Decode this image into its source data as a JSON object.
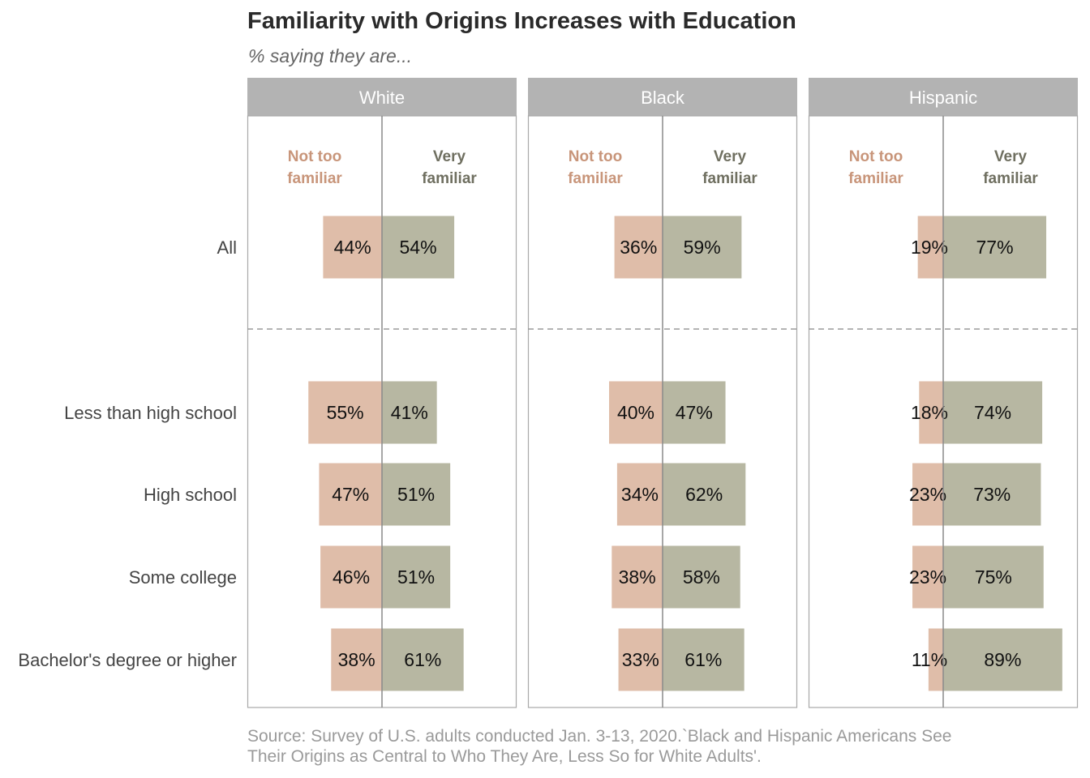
{
  "title": "Familiarity with Origins Increases with Education",
  "subtitle": "% saying they are...",
  "source_lines": [
    "Source: Survey of U.S. adults conducted Jan. 3-13, 2020.`Black and Hispanic Americans See",
    "Their Origins as Central to Who They Are, Less So for White Adults'."
  ],
  "colors": {
    "not_familiar": "#dfbda9",
    "very_familiar": "#b7b7a2",
    "not_familiar_label": "#c8957a",
    "very_familiar_label": "#6f6f60",
    "strip": "#b3b3b3"
  },
  "chart_data": {
    "type": "bar",
    "orientation": "horizontal-diverging",
    "categories": [
      "All",
      "Less than high school",
      "High school",
      "Some college",
      "Bachelor's degree or higher"
    ],
    "series_labels": {
      "not_familiar": [
        "Not too",
        "familiar"
      ],
      "very_familiar": [
        "Very",
        "familiar"
      ]
    },
    "panels": [
      {
        "name": "White",
        "not_familiar": [
          44,
          55,
          47,
          46,
          38
        ],
        "very_familiar": [
          54,
          41,
          51,
          51,
          61
        ],
        "labels_not": [
          "44%",
          "55%",
          "47%",
          "46%",
          "38%"
        ],
        "labels_very": [
          "54%",
          "41%",
          "51%",
          "51%",
          "61%"
        ]
      },
      {
        "name": "Black",
        "not_familiar": [
          36,
          40,
          34,
          38,
          33
        ],
        "very_familiar": [
          59,
          47,
          62,
          58,
          61
        ],
        "labels_not": [
          "36%",
          "40%",
          "34%",
          "38%",
          "33%"
        ],
        "labels_very": [
          "59%",
          "47%",
          "62%",
          "58%",
          "61%"
        ]
      },
      {
        "name": "Hispanic",
        "not_familiar": [
          19,
          18,
          23,
          23,
          11
        ],
        "very_familiar": [
          77,
          74,
          73,
          75,
          89
        ],
        "labels_not": [
          "19%",
          "18%",
          "23%",
          "23%",
          "11%"
        ],
        "labels_very": [
          "77%",
          "74%",
          "73%",
          "75%",
          "89%"
        ]
      }
    ]
  }
}
